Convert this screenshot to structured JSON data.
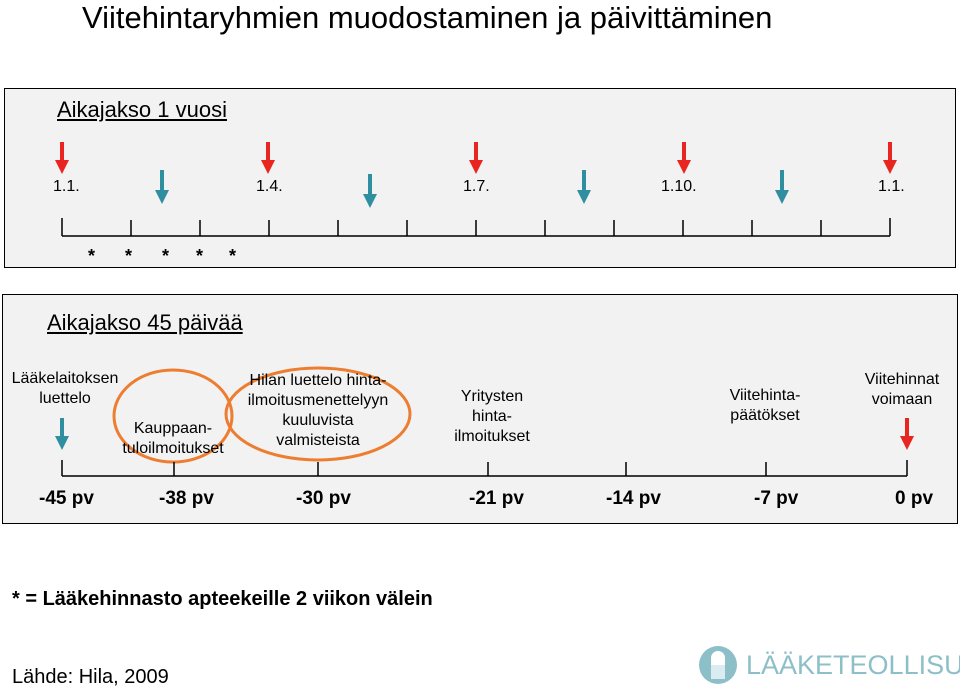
{
  "title": "Viitehintaryhmien muodostaminen ja päivittäminen",
  "period1": {
    "title": "Aikajakso 1 vuosi",
    "dates": [
      "1.1.",
      "1.4.",
      "1.7.",
      "1.10.",
      "1.1."
    ],
    "stars": [
      "*",
      "*",
      "*",
      "*",
      "*"
    ]
  },
  "period2": {
    "title": "Aikajakso 45 päivää",
    "labels": {
      "laakelaitos_1": "Lääkelaitoksen",
      "laakelaitos_2": "luettelo",
      "kauppaan_1": "Kauppaan-",
      "kauppaan_2": "tuloilmoitukset",
      "hila_1": "Hilan luettelo hinta-",
      "hila_2": "ilmoitusmenettelyyn",
      "hila_3": "kuuluvista",
      "hila_4": "valmisteista",
      "yritysten_1": "Yritysten",
      "yritysten_2": "hinta-",
      "yritysten_3": "ilmoitukset",
      "paatokset_1": "Viitehinta-",
      "paatokset_2": "päätökset",
      "voimaan_1": "Viitehinnat",
      "voimaan_2": "voimaan"
    },
    "days": [
      "-45 pv",
      "-38 pv",
      "-30 pv",
      "-21 pv",
      "-14 pv",
      "-7 pv",
      "0 pv"
    ]
  },
  "footnote": "* =  Lääkehinnasto apteekeille 2 viikon välein",
  "source": "Lähde: Hila, 2009",
  "logo": {
    "text": "LÄÄKETEOLLISUUS",
    "icon": "capsule-icon"
  },
  "colors": {
    "red_arrow": "#e8261f",
    "teal_arrow": "#2f8fa0",
    "highlight_circle": "#ed7d31",
    "panel_bg": "#f2f2f2",
    "logo": "#8cbfc7"
  }
}
